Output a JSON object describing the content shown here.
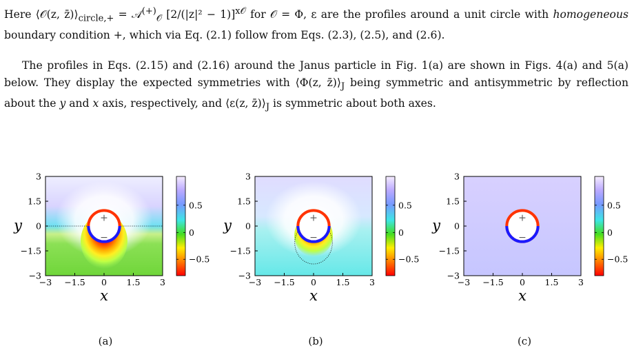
{
  "text": {
    "p1_prefix": "Here ⟨𝒪(z, z̄)⟩",
    "p1_sub": "circle,+",
    "p1_eq": " = 𝒜",
    "p1_sup2": "(+)",
    "p1_sub2": "𝒪",
    "p1_bracket": " [2/(|z|² − 1)]",
    "p1_exp": "x𝒪",
    "p1_rest1": " for 𝒪 = Φ, ε are the profiles around a unit circle with ",
    "p1_hom": "homogeneous",
    "p1_rest2": " boundary condition +, which via Eq. (2.1) follow from Eqs. (2.3), (2.5), and (2.6).",
    "p2_a": "The profiles in Eqs. (2.15) and (2.16) around the Janus particle in Fig. 1(a) are shown in Figs. 4(a) and 5(a) below. They display the expected symmetries with ⟨Φ(z, z̄)⟩",
    "p2_sub1": "J",
    "p2_b": " being symmetric and antisymmetric by reflection about the ",
    "p2_y": "y",
    "p2_c": " and ",
    "p2_x": "x",
    "p2_d": " axis, respectively, and ⟨ε(z, z̄)⟩",
    "p2_sub2": "J",
    "p2_e": " is symmetric about both axes."
  },
  "figures": [
    {
      "label": "(a)",
      "variant": "a"
    },
    {
      "label": "(b)",
      "variant": "b"
    },
    {
      "label": "(c)",
      "variant": "c"
    }
  ],
  "chart_data": [
    {
      "type": "heatmap",
      "xlabel": "x",
      "ylabel": "y",
      "xlim": [
        -3,
        3
      ],
      "ylim": [
        -3,
        3
      ],
      "xticks": [
        "−3",
        "−1.5",
        "0",
        "1.5",
        "3"
      ],
      "yticks": [
        "3",
        "1.5",
        "0",
        "−1.5",
        "−3"
      ],
      "colorbar_ticks": [
        "0.5",
        "0",
        "−0.5"
      ],
      "circle_marks": [
        "+",
        "−"
      ]
    },
    {
      "type": "heatmap",
      "xlabel": "x",
      "ylabel": "y",
      "xlim": [
        -3,
        3
      ],
      "ylim": [
        -3,
        3
      ],
      "xticks": [
        "−3",
        "−1.5",
        "0",
        "1.5",
        "3"
      ],
      "yticks": [
        "3",
        "1.5",
        "0",
        "−1.5",
        "−3"
      ],
      "colorbar_ticks": [
        "0.5",
        "0",
        "−0.5"
      ],
      "circle_marks": [
        "+",
        "−"
      ]
    },
    {
      "type": "heatmap",
      "xlabel": "x",
      "ylabel": "y",
      "xlim": [
        -3,
        3
      ],
      "ylim": [
        -3,
        3
      ],
      "xticks": [
        "−3",
        "−1.5",
        "0",
        "1.5",
        "3"
      ],
      "yticks": [
        "3",
        "1.5",
        "0",
        "−1.5",
        "−3"
      ],
      "colorbar_ticks": [
        "0.5",
        "0",
        "−0.5"
      ],
      "circle_marks": [
        "+",
        "−"
      ]
    }
  ]
}
